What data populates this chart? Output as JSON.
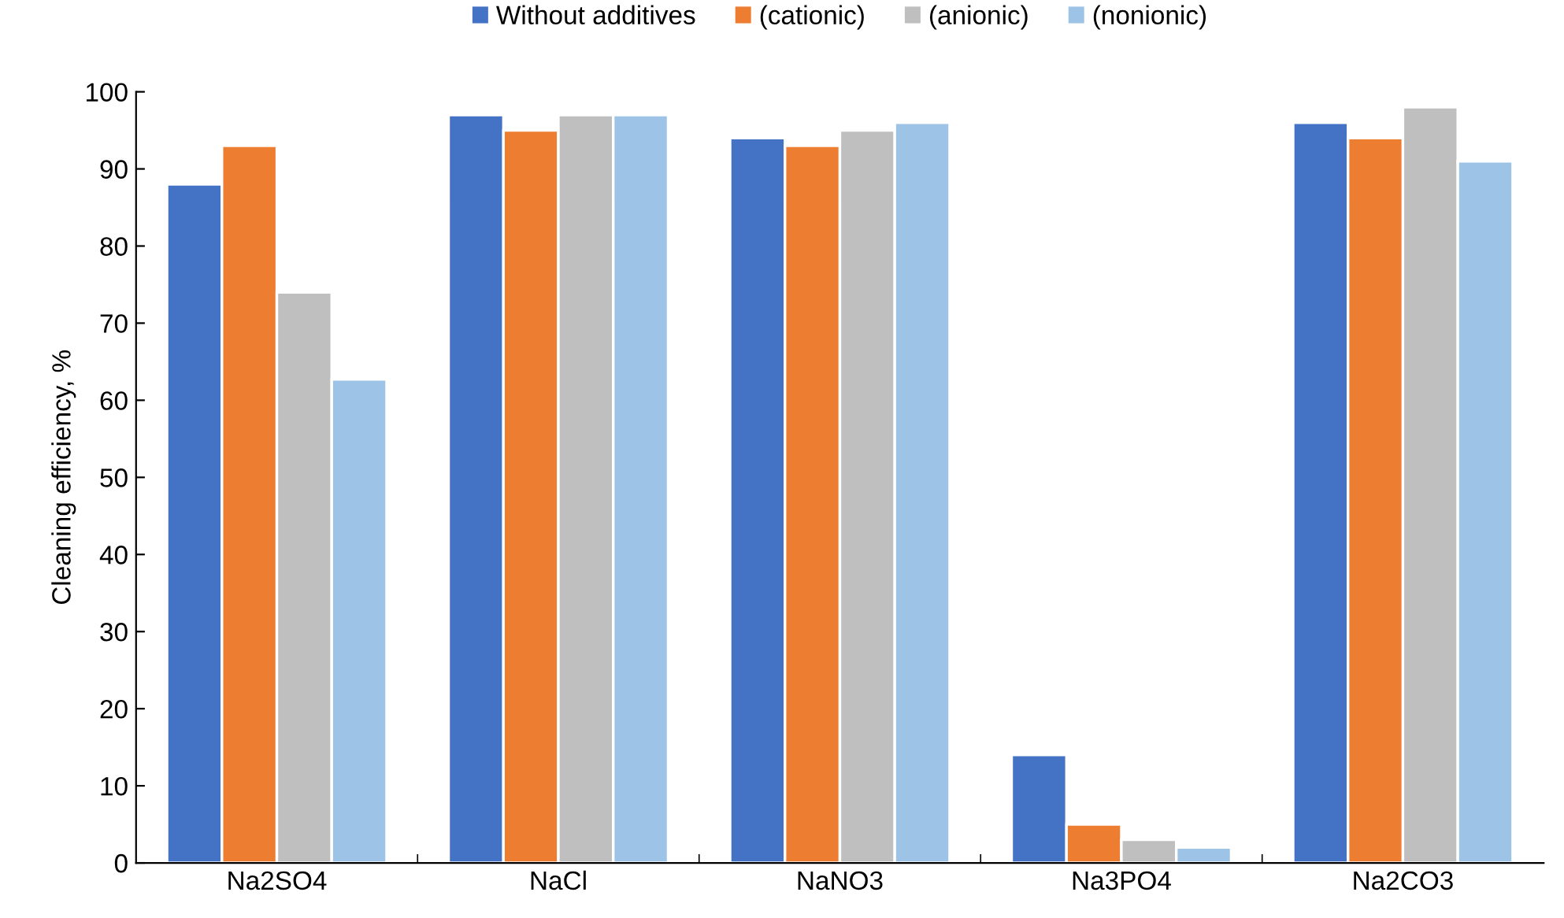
{
  "chart_data": {
    "type": "bar",
    "ylabel": "Cleaning efficiency, %",
    "categories": [
      "Na2SO4",
      "NaCl",
      "NaNO3",
      "Na3PO4",
      "Na2CO3"
    ],
    "series": [
      {
        "name": "Without additives",
        "color": "#4472c4",
        "values": [
          88,
          97,
          94,
          14,
          96
        ]
      },
      {
        "name": "(cationic)",
        "color": "#ed7d31",
        "values": [
          93,
          95,
          93,
          5,
          94
        ]
      },
      {
        "name": "(anionic)",
        "color": "#bfbfbf",
        "values": [
          74,
          97,
          95,
          3,
          98
        ]
      },
      {
        "name": "(nonionic)",
        "color": "#9dc3e6",
        "values": [
          62.7,
          97,
          96,
          2,
          91
        ]
      }
    ],
    "ylim": [
      0,
      100
    ],
    "yticks": [
      0,
      10,
      20,
      30,
      40,
      50,
      60,
      70,
      80,
      90,
      100
    ],
    "grid": false,
    "legend": "top"
  }
}
